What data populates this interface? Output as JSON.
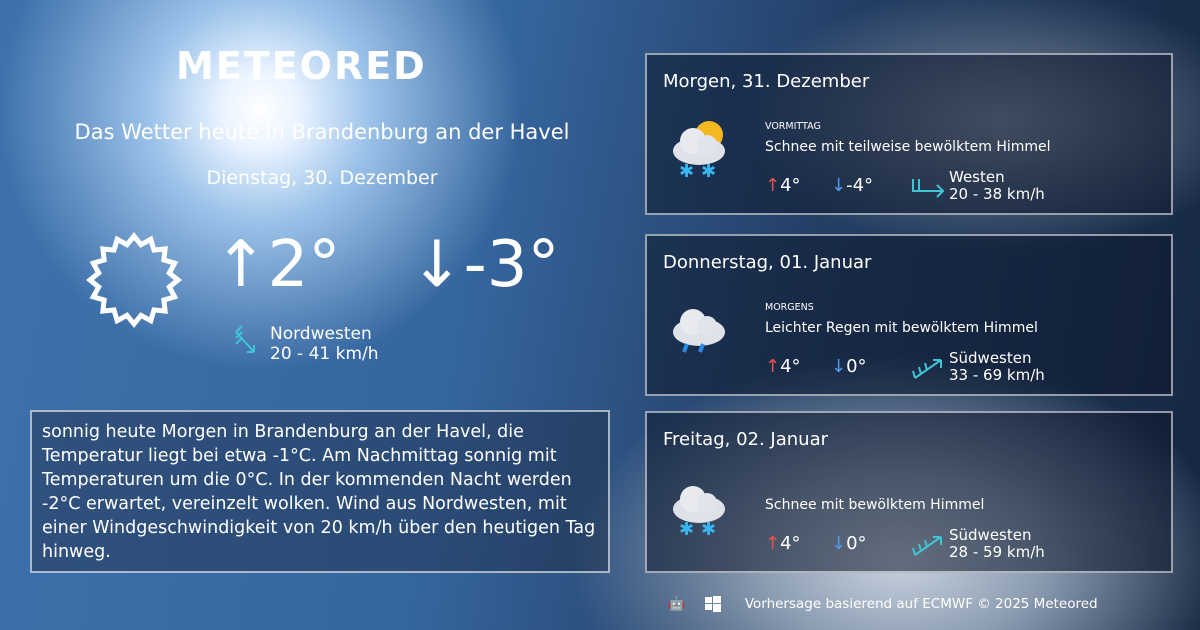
{
  "brand": "METEORED",
  "title": "Das Wetter heute in Brandenburg an der Havel",
  "date": "Dienstag, 30. Dezember",
  "today": {
    "icon": "sun-outline-icon",
    "max": "↑2°",
    "min": "↓-3°",
    "wind_dir": "Nordwesten",
    "wind_speed": "20 - 41 km/h"
  },
  "description": "sonnig heute Morgen in Brandenburg an der Havel, die Temperatur liegt bei etwa -1°C. Am Nachmittag sonnig mit Temperaturen um die 0°C. In der kommenden Nacht werden -2°C erwartet, vereinzelt wolken. Wind aus Nordwesten, mit einer Windgeschwindigkeit von 20 km/h über den heutigen Tag hinweg.",
  "forecast": [
    {
      "day": "Morgen, 31. Dezember",
      "period": "VORMITTAG",
      "condition": "Schnee mit teilweise bewölktem Himmel",
      "icon": "snow-partly-cloudy-icon",
      "max": "4°",
      "min": "-4°",
      "wind_dir": "Westen",
      "wind_speed": "20 - 38 km/h"
    },
    {
      "day": "Donnerstag, 01. Januar",
      "period": "MORGENS",
      "condition": "Leichter Regen mit bewölktem Himmel",
      "icon": "rain-cloud-icon",
      "max": "4°",
      "min": "0°",
      "wind_dir": "Südwesten",
      "wind_speed": "33 - 69 km/h"
    },
    {
      "day": "Freitag, 02. Januar",
      "period": "",
      "condition": "Schnee mit bewölktem Himmel",
      "icon": "snow-cloud-icon",
      "max": "4°",
      "min": "0°",
      "wind_dir": "Südwesten",
      "wind_speed": "28 - 59 km/h"
    }
  ],
  "footer": {
    "text": "Vorhersage basierend auf ECMWF © 2025 Meteored",
    "icons": [
      "android-icon",
      "apple-icon",
      "windows-icon"
    ]
  },
  "colors": {
    "max": "#e8534e",
    "min": "#4f9be8",
    "wind": "#3fc6d6"
  }
}
